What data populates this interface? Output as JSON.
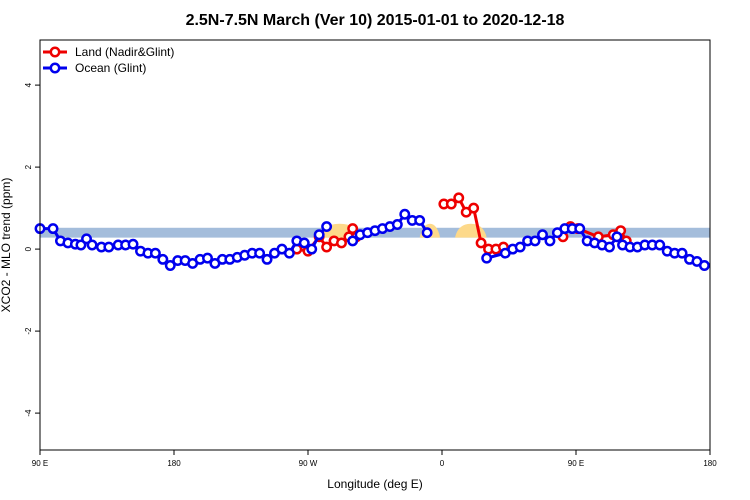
{
  "chart_data": {
    "type": "line",
    "title": "2.5N-7.5N March (Ver 10)   2015-01-01 to 2020-12-18",
    "xlabel": "Longitude (deg E)",
    "ylabel": "XCO2 - MLO trend (ppm)",
    "xlim": [
      90,
      450
    ],
    "ylim": [
      -4.9,
      5.1
    ],
    "x_ticks": [
      {
        "value": 90,
        "label": "90 E"
      },
      {
        "value": 162,
        "label": "180"
      },
      {
        "value": 234,
        "label": "90 W"
      },
      {
        "value": 306,
        "label": "0"
      },
      {
        "value": 378,
        "label": "90 E"
      },
      {
        "value": 450,
        "label": "180"
      }
    ],
    "y_ticks": [
      {
        "value": -4,
        "label": "-4"
      },
      {
        "value": -2,
        "label": "-2"
      },
      {
        "value": 0,
        "label": "0"
      },
      {
        "value": 2,
        "label": "2"
      },
      {
        "value": 4,
        "label": "4"
      }
    ],
    "grid": false,
    "legend_position": "top-left",
    "band": {
      "y_low": 0.28,
      "y_high": 0.52,
      "ocean_color": "#a4bddb",
      "land_color": "#fdd98a",
      "land_ranges": [
        [
          240,
          262
        ],
        [
          294,
          305
        ],
        [
          313,
          330
        ]
      ]
    },
    "series": [
      {
        "name": "Land (Nadir&Glint)",
        "color": "#ee0000",
        "points": [
          [
            228,
            0.0
          ],
          [
            234,
            -0.05
          ],
          [
            240,
            0.3
          ],
          [
            244,
            0.05
          ],
          [
            248,
            0.2
          ],
          [
            252,
            0.15
          ],
          [
            256,
            0.3
          ],
          [
            258,
            0.5
          ],
          [
            260,
            0.3
          ],
          [
            307,
            1.1
          ],
          [
            311,
            1.1
          ],
          [
            315,
            1.25
          ],
          [
            319,
            0.9
          ],
          [
            323,
            1.0
          ],
          [
            327,
            0.15
          ],
          [
            331,
            0.0
          ],
          [
            335,
            0.0
          ],
          [
            339,
            0.05
          ],
          [
            371,
            0.3
          ],
          [
            375,
            0.55
          ],
          [
            379,
            0.5
          ],
          [
            390,
            0.3
          ],
          [
            398,
            0.35
          ],
          [
            402,
            0.45
          ],
          [
            405,
            0.2
          ]
        ]
      },
      {
        "name": "Ocean (Glint)",
        "color": "#0000ee",
        "points": [
          [
            90,
            0.5
          ],
          [
            97,
            0.5
          ],
          [
            101,
            0.2
          ],
          [
            105,
            0.15
          ],
          [
            109,
            0.12
          ],
          [
            112,
            0.1
          ],
          [
            115,
            0.25
          ],
          [
            118,
            0.1
          ],
          [
            123,
            0.05
          ],
          [
            127,
            0.05
          ],
          [
            132,
            0.1
          ],
          [
            136,
            0.1
          ],
          [
            140,
            0.12
          ],
          [
            144,
            -0.05
          ],
          [
            148,
            -0.1
          ],
          [
            152,
            -0.1
          ],
          [
            156,
            -0.25
          ],
          [
            160,
            -0.4
          ],
          [
            164,
            -0.28
          ],
          [
            168,
            -0.28
          ],
          [
            172,
            -0.35
          ],
          [
            176,
            -0.25
          ],
          [
            180,
            -0.22
          ],
          [
            184,
            -0.35
          ],
          [
            188,
            -0.25
          ],
          [
            192,
            -0.25
          ],
          [
            196,
            -0.2
          ],
          [
            200,
            -0.15
          ],
          [
            204,
            -0.1
          ],
          [
            208,
            -0.1
          ],
          [
            212,
            -0.25
          ],
          [
            216,
            -0.1
          ],
          [
            220,
            0.0
          ],
          [
            224,
            -0.1
          ],
          [
            228,
            0.2
          ],
          [
            232,
            0.15
          ],
          [
            236,
            0.0
          ],
          [
            240,
            0.35
          ],
          [
            244,
            0.55
          ],
          [
            258,
            0.2
          ],
          [
            262,
            0.35
          ],
          [
            266,
            0.4
          ],
          [
            270,
            0.45
          ],
          [
            274,
            0.5
          ],
          [
            278,
            0.55
          ],
          [
            282,
            0.6
          ],
          [
            286,
            0.85
          ],
          [
            290,
            0.7
          ],
          [
            294,
            0.7
          ],
          [
            298,
            0.4
          ],
          [
            330,
            -0.22
          ],
          [
            340,
            -0.1
          ],
          [
            344,
            0.0
          ],
          [
            348,
            0.05
          ],
          [
            352,
            0.2
          ],
          [
            356,
            0.2
          ],
          [
            360,
            0.35
          ],
          [
            364,
            0.2
          ],
          [
            368,
            0.4
          ],
          [
            372,
            0.5
          ],
          [
            376,
            0.5
          ],
          [
            380,
            0.5
          ],
          [
            384,
            0.2
          ],
          [
            388,
            0.15
          ],
          [
            392,
            0.1
          ],
          [
            396,
            0.05
          ],
          [
            400,
            0.3
          ],
          [
            403,
            0.1
          ],
          [
            407,
            0.05
          ],
          [
            411,
            0.05
          ],
          [
            415,
            0.1
          ],
          [
            419,
            0.1
          ],
          [
            423,
            0.1
          ],
          [
            427,
            -0.05
          ],
          [
            431,
            -0.1
          ],
          [
            435,
            -0.1
          ],
          [
            439,
            -0.25
          ],
          [
            443,
            -0.3
          ],
          [
            447,
            -0.4
          ]
        ]
      }
    ]
  }
}
